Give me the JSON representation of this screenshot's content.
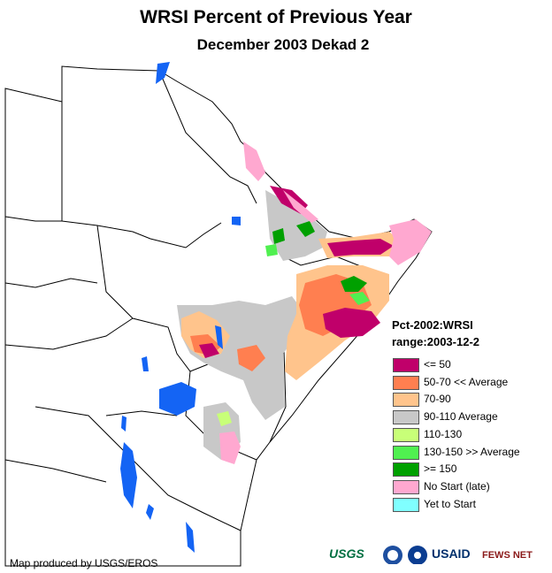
{
  "title": "WRSI Percent of Previous Year",
  "subtitle": "December 2003 Dekad 2",
  "legend": {
    "heading_line1": "Pct-2002:WRSI",
    "heading_line2": "range:2003-12-2",
    "items": [
      {
        "label": "<= 50",
        "color": "#c0006a"
      },
      {
        "label": "50-70 << Average",
        "color": "#ff7f50"
      },
      {
        "label": "70-90",
        "color": "#ffc48c"
      },
      {
        "label": "90-110 Average",
        "color": "#c8c8c8"
      },
      {
        "label": "110-130",
        "color": "#c8ff78"
      },
      {
        "label": "130-150 >> Average",
        "color": "#50f050"
      },
      {
        "label": ">= 150",
        "color": "#00a000"
      },
      {
        "label": "No Start (late)",
        "color": "#ffa8d0"
      },
      {
        "label": "Yet to Start",
        "color": "#80ffff"
      }
    ]
  },
  "credit": "Map produced by USGS/EROS",
  "logos": {
    "usgs": "USGS",
    "usaid": "USAID",
    "fewsnet": "FEWS NET",
    "usgs_color": "#006f41",
    "usaid_color": "#002f6c",
    "fews_color": "#8b1a1a"
  },
  "water_color": "#1464f4"
}
